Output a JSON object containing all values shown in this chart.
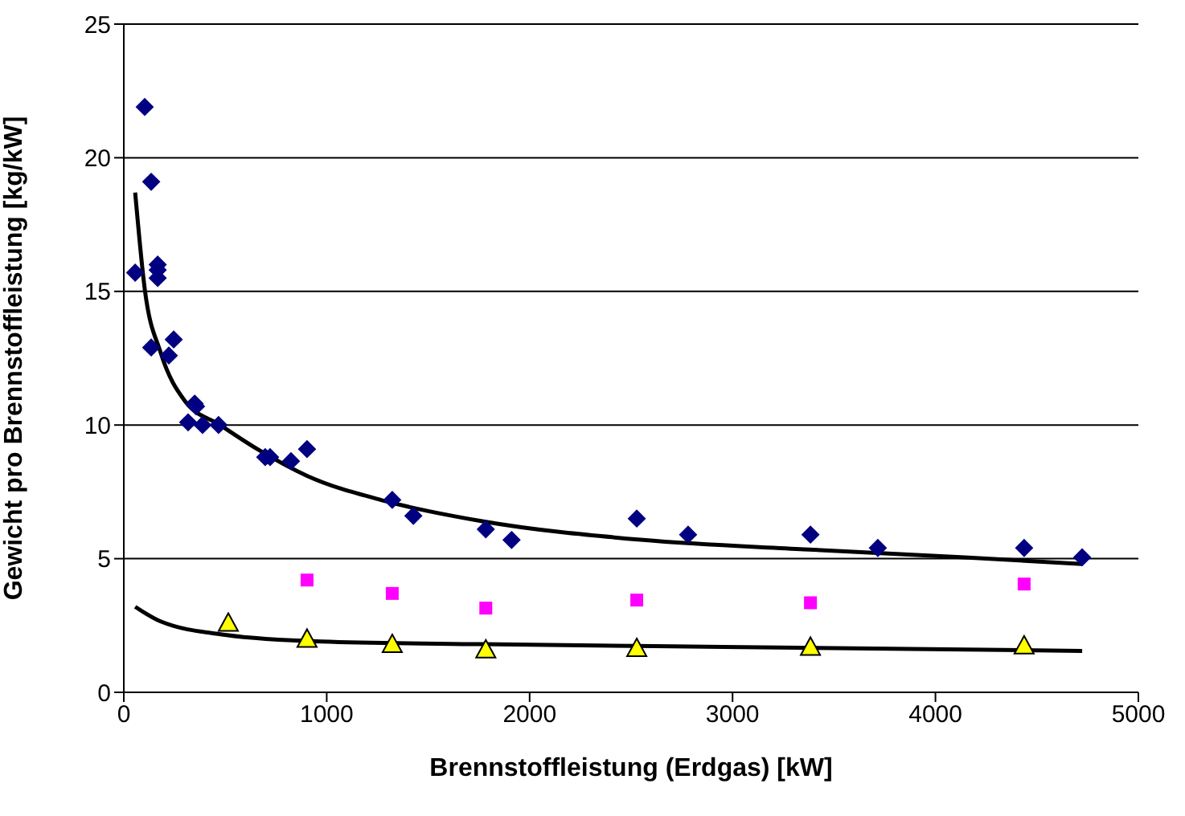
{
  "chart_data": {
    "type": "scatter",
    "xlabel": "Brennstoffleistung (Erdgas) [kW]",
    "ylabel": "Gewicht pro Brennstoffleistung [kg/kW]",
    "xlim": [
      0,
      5000
    ],
    "xticks": [
      0,
      1000,
      2000,
      3000,
      4000,
      5000
    ],
    "ylim": [
      0,
      25
    ],
    "yticks": [
      0,
      5,
      10,
      15,
      20,
      25
    ],
    "grid": "y",
    "series": [
      {
        "marker": "diamond",
        "color": "#000080",
        "x": [
          56,
          103,
          135,
          167,
          167,
          167,
          135,
          222,
          246,
          317,
          349,
          356,
          388,
          467,
          697,
          721,
          824,
          903,
          1323,
          1427,
          1784,
          1911,
          2528,
          2781,
          3384,
          3716,
          4437,
          4723
        ],
        "values": [
          15.7,
          21.9,
          19.1,
          16.0,
          15.8,
          15.5,
          12.9,
          12.6,
          13.2,
          10.1,
          10.8,
          10.7,
          10.0,
          10.0,
          8.8,
          8.8,
          8.65,
          9.1,
          7.2,
          6.6,
          6.1,
          5.7,
          6.5,
          5.9,
          5.9,
          5.4,
          5.4,
          5.05
        ]
      },
      {
        "marker": "square",
        "color": "#ff00ff",
        "x": [
          903,
          1323,
          1784,
          2528,
          3384,
          4437
        ],
        "values": [
          4.2,
          3.7,
          3.15,
          3.45,
          3.35,
          4.05
        ]
      },
      {
        "marker": "triangle",
        "color": "#ffff00",
        "x": [
          515,
          903,
          1323,
          1784,
          2528,
          3384,
          4437
        ],
        "values": [
          2.6,
          2.0,
          1.8,
          1.6,
          1.65,
          1.7,
          1.75
        ]
      },
      {
        "type": "line",
        "marker": "none",
        "color": "#000000",
        "x": [
          56,
          103,
          182,
          301,
          475,
          658,
          903,
          1292,
          1767,
          2560,
          3352,
          4144,
          4723
        ],
        "values": [
          18.7,
          15.1,
          12.7,
          10.9,
          10.0,
          9.1,
          8.1,
          7.15,
          6.4,
          5.7,
          5.35,
          5.05,
          4.8
        ]
      },
      {
        "type": "line",
        "marker": "none",
        "color": "#000000",
        "x": [
          56,
          182,
          500,
          975,
          1767,
          2956,
          4723
        ],
        "values": [
          3.2,
          2.65,
          2.15,
          1.9,
          1.8,
          1.7,
          1.55
        ]
      }
    ]
  }
}
